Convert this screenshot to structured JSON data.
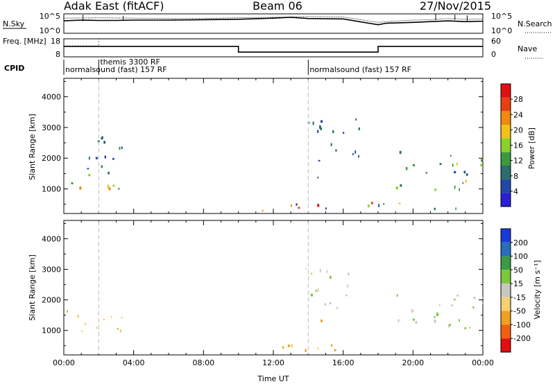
{
  "header": {
    "station": "Adak East (fitACF)",
    "beam": "Beam 06",
    "date": "27/Nov/2015"
  },
  "colors": {
    "frame": "#000000",
    "dashed_marker": "#bbbbbb"
  },
  "chart_data": [
    {
      "type": "line",
      "panel": "noise",
      "left_label": "N.Sky",
      "right_label": "N.Search",
      "left_ticks": [
        "10^5",
        "10^0"
      ],
      "right_ticks": [
        "10^5",
        "10^0"
      ],
      "series": [
        {
          "name": "N.Sky",
          "style": "solid",
          "x": [
            0,
            1,
            2,
            3,
            4,
            6,
            8,
            10,
            12,
            13,
            14,
            16,
            18,
            18.5,
            20,
            21,
            22,
            23,
            24
          ],
          "y": [
            3.2,
            3.4,
            3.3,
            3.3,
            3.4,
            3.4,
            3.5,
            3.6,
            3.9,
            4.1,
            3.8,
            3.7,
            2.2,
            2.6,
            2.8,
            3.0,
            3.2,
            3.0,
            3.1
          ]
        },
        {
          "name": "N.Search",
          "style": "dotted",
          "x": [
            0,
            2,
            4,
            6,
            8,
            10,
            12,
            14,
            16,
            18,
            18.5,
            20,
            21,
            22,
            23,
            24
          ],
          "y": [
            3.9,
            4.0,
            3.9,
            3.8,
            3.8,
            4.0,
            4.1,
            4.3,
            4.2,
            2.8,
            3.0,
            3.4,
            3.5,
            3.8,
            3.6,
            3.7
          ]
        }
      ],
      "ylim": [
        0,
        5
      ]
    },
    {
      "type": "line",
      "panel": "frequency",
      "left_label": "Freq. [MHz]",
      "right_label": "Nave",
      "left_ticks": [
        "18",
        "8"
      ],
      "right_ticks": [
        "60",
        "0"
      ],
      "series": [
        {
          "name": "Freq.",
          "style": "solid",
          "x": [
            0,
            10,
            10,
            18,
            18,
            24
          ],
          "y": [
            13.8,
            13.8,
            10.6,
            10.6,
            13.8,
            13.8
          ]
        },
        {
          "name": "Nave",
          "style": "dotted",
          "x": [
            0,
            2,
            2,
            24
          ],
          "y": [
            14,
            14,
            18,
            18
          ]
        }
      ],
      "ylim": [
        8,
        18
      ]
    },
    {
      "type": "table",
      "panel": "cpid",
      "left_label": "CPID",
      "segments": [
        {
          "label": "normalsound (fast) 157 RF",
          "start": 0,
          "end": 14
        },
        {
          "label": "themis 3300 RF",
          "start": 2,
          "end": 4
        },
        {
          "label": "normalsound (fast) 157 RF",
          "start": 14,
          "end": 24
        }
      ],
      "boundaries": [
        2,
        14
      ]
    },
    {
      "type": "heatmap",
      "panel": "power",
      "ylabel": "Slant Range [km]",
      "xlabel": "",
      "ylim": [
        200,
        4600
      ],
      "y_ticks": [
        1000,
        2000,
        3000,
        4000
      ],
      "colorbar": {
        "label": "Power [dB]",
        "ticks": [
          4,
          8,
          12,
          16,
          20,
          24,
          28
        ],
        "range": [
          0,
          32
        ],
        "colors": [
          "#2a1fd8",
          "#2347a6",
          "#2b6d6a",
          "#3a9a3e",
          "#8ad12c",
          "#f0c21a",
          "#f08a10",
          "#e84012",
          "#e01010"
        ]
      },
      "regions": [
        {
          "x": [
            0,
            3.8
          ],
          "y": [
            900,
            1500
          ],
          "intensity": [
            6,
            26
          ]
        },
        {
          "x": [
            0.5,
            3.8
          ],
          "y": [
            1500,
            2700
          ],
          "intensity": [
            4,
            12
          ]
        },
        {
          "x": [
            10,
            24
          ],
          "y": [
            250,
            550
          ],
          "intensity": [
            4,
            30
          ]
        },
        {
          "x": [
            13.7,
            16.9
          ],
          "y": [
            1700,
            3300
          ],
          "intensity": [
            4,
            10
          ]
        },
        {
          "x": [
            12.3,
            14.8
          ],
          "y": [
            1350,
            1450
          ],
          "intensity": [
            4,
            8
          ]
        },
        {
          "x": [
            19,
            24
          ],
          "y": [
            900,
            2200
          ],
          "intensity": [
            4,
            24
          ]
        }
      ]
    },
    {
      "type": "heatmap",
      "panel": "velocity",
      "ylabel": "Slant Range [km]",
      "xlabel": "Time UT",
      "ylim": [
        200,
        4600
      ],
      "y_ticks": [
        1000,
        2000,
        3000,
        4000
      ],
      "x_ticks": [
        "00:00",
        "04:00",
        "08:00",
        "12:00",
        "16:00",
        "20:00",
        "00:00"
      ],
      "x_tick_values": [
        0,
        4,
        8,
        12,
        16,
        20,
        24
      ],
      "xlim": [
        0,
        24
      ],
      "colorbar": {
        "label": "Velocity [m s⁻¹]",
        "ticks": [
          "200",
          "100",
          "50",
          "15",
          "-15",
          "-50",
          "-100",
          "-200"
        ],
        "colors": [
          "#1a3ad8",
          "#2a6dba",
          "#3b9a48",
          "#7ac83c",
          "#c8c8c0",
          "#f5d070",
          "#f0a020",
          "#f06010",
          "#e01010"
        ]
      },
      "regions": [
        {
          "x": [
            0,
            3.8
          ],
          "y": [
            900,
            1700
          ],
          "v": -5
        },
        {
          "x": [
            10,
            17
          ],
          "y": [
            250,
            550
          ],
          "v": -60
        },
        {
          "x": [
            12.3,
            14.8
          ],
          "y": [
            1300,
            1400
          ],
          "v": -70
        },
        {
          "x": [
            13.7,
            16.9
          ],
          "y": [
            1700,
            3100
          ],
          "v": 10
        },
        {
          "x": [
            19,
            24
          ],
          "y": [
            900,
            2200
          ],
          "v": 5
        }
      ]
    }
  ]
}
